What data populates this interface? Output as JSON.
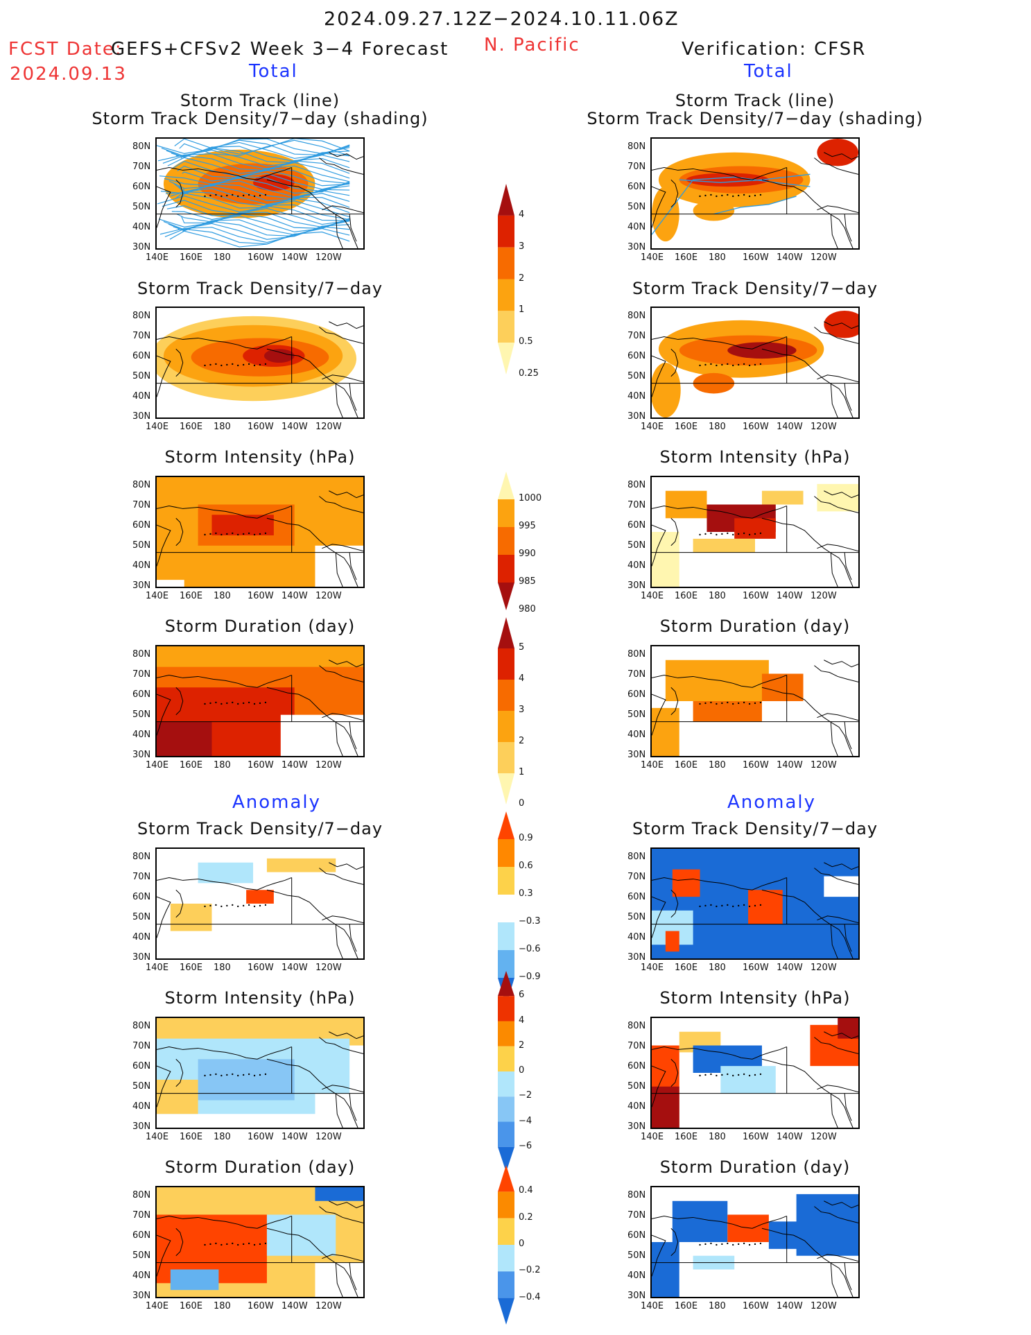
{
  "header": {
    "date_range": "2024.09.27.12Z−2024.10.11.06Z",
    "fcst_label": "FCST Date:",
    "fcst_model": "GEFS+CFSv2 Week 3−4 Forecast",
    "fcst_date": "2024.09.13",
    "region": "N. Pacific",
    "verification": "Verification: CFSR",
    "left_section_total": "Total",
    "right_section_total": "Total",
    "left_section_anomaly": "Anomaly",
    "right_section_anomaly": "Anomaly"
  },
  "axis": {
    "y_labels": [
      "80N",
      "70N",
      "60N",
      "50N",
      "40N",
      "30N"
    ],
    "x_labels": [
      "140E",
      "160E",
      "180",
      "160W",
      "140W",
      "120W"
    ]
  },
  "panels": {
    "left": [
      {
        "title_lines": [
          "Storm Track (line)",
          "Storm Track Density/7−day (shading)"
        ]
      },
      {
        "title_lines": [
          "Storm Track Density/7−day"
        ]
      },
      {
        "title_lines": [
          "Storm Intensity (hPa)"
        ]
      },
      {
        "title_lines": [
          "Storm Duration (day)"
        ]
      },
      {
        "title_lines": [
          "Storm Track Density/7−day"
        ]
      },
      {
        "title_lines": [
          "Storm Intensity (hPa)"
        ]
      },
      {
        "title_lines": [
          "Storm Duration (day)"
        ]
      }
    ],
    "right": [
      {
        "title_lines": [
          "Storm Track (line)",
          "Storm Track Density/7−day (shading)"
        ]
      },
      {
        "title_lines": [
          "Storm Track Density/7−day"
        ]
      },
      {
        "title_lines": [
          "Storm Intensity (hPa)"
        ]
      },
      {
        "title_lines": [
          "Storm Duration (day)"
        ]
      },
      {
        "title_lines": [
          "Storm Track Density/7−day"
        ]
      },
      {
        "title_lines": [
          "Storm Intensity (hPa)"
        ]
      },
      {
        "title_lines": [
          "Storm Duration (day)"
        ]
      }
    ]
  },
  "colorbars": [
    {
      "name": "density-total",
      "labels": [
        "4",
        "3",
        "2",
        "1",
        "0.5",
        "0.25"
      ],
      "colors": [
        "#a50f0f",
        "#dd2200",
        "#f76b00",
        "#fca310",
        "#fdcf5a",
        "#fff6b0"
      ]
    },
    {
      "name": "intensity-total",
      "labels": [
        "1000",
        "995",
        "990",
        "985",
        "980"
      ],
      "colors": [
        "#fff6b0",
        "#fca310",
        "#f76b00",
        "#dd2200",
        "#a50f0f"
      ]
    },
    {
      "name": "duration-total",
      "labels": [
        "5",
        "4",
        "3",
        "2",
        "1",
        "0"
      ],
      "colors": [
        "#a50f0f",
        "#dd2200",
        "#f76b00",
        "#fca310",
        "#fdcf5a",
        "#fff6b0"
      ]
    },
    {
      "name": "density-anom",
      "labels": [
        "0.9",
        "0.6",
        "0.3",
        "−0.3",
        "−0.6",
        "−0.9"
      ],
      "colors": [
        "#ff4400",
        "#ff8800",
        "#fdd24a",
        "#ffffff",
        "#b0e6fb",
        "#63b2f0",
        "#1a6bd6"
      ]
    },
    {
      "name": "intensity-anom",
      "labels": [
        "6",
        "4",
        "2",
        "0",
        "−2",
        "−4",
        "−6"
      ],
      "colors": [
        "#a50f0f",
        "#ee3300",
        "#fb8a00",
        "#fdd24a",
        "#b0e6fb",
        "#87c6f5",
        "#4a95ea",
        "#1a6bd6"
      ]
    },
    {
      "name": "duration-anom",
      "labels": [
        "0.4",
        "0.2",
        "0",
        "−0.2",
        "−0.4"
      ],
      "colors": [
        "#ff4400",
        "#fb8a00",
        "#fdd24a",
        "#b0e6fb",
        "#4a95ea",
        "#1a6bd6"
      ]
    }
  ]
}
